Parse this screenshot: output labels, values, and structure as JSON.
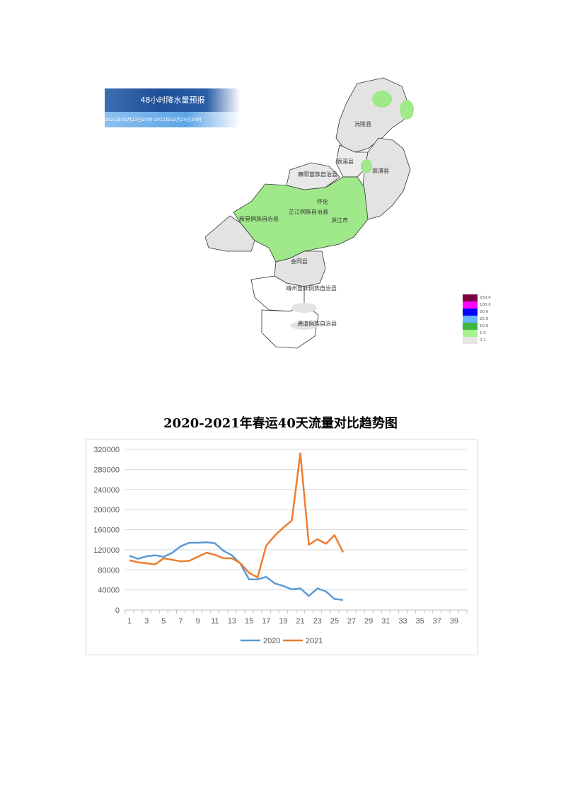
{
  "map": {
    "banner_title": "48小时降水量预报",
    "banner_subtitle": "2021年02月23日20时-2021年02月24日20时",
    "counties": [
      "沅陵县",
      "辰溪县",
      "溆浦县",
      "麻阳苗族自治县",
      "怀化",
      "芷江侗族自治县",
      "新晃侗族自治县",
      "洪江市",
      "会同县",
      "靖州苗族侗族自治县",
      "通道侗族自治县"
    ],
    "legend": [
      {
        "label": "250.0",
        "color": "#7a0040"
      },
      {
        "label": "100.0",
        "color": "#ff00ff"
      },
      {
        "label": "50.0",
        "color": "#0000ff"
      },
      {
        "label": "25.0",
        "color": "#66b3ff"
      },
      {
        "label": "10.0",
        "color": "#3cb93c"
      },
      {
        "label": "1.0",
        "color": "#a6f28f"
      },
      {
        "label": "0.1",
        "color": "#e6e6e6"
      }
    ]
  },
  "chart_data": {
    "type": "line",
    "title": "2020-2021年春运40天流量对比趋势图",
    "xlabel": "",
    "ylabel": "",
    "xlim": [
      1,
      40
    ],
    "x_tick_labels": [
      "1",
      "3",
      "5",
      "7",
      "9",
      "11",
      "13",
      "15",
      "17",
      "19",
      "21",
      "23",
      "25",
      "27",
      "29",
      "31",
      "33",
      "35",
      "37",
      "39"
    ],
    "ylim": [
      0,
      320000
    ],
    "y_ticks": [
      0,
      40000,
      80000,
      120000,
      160000,
      200000,
      240000,
      280000,
      320000
    ],
    "grid": true,
    "legend_position": "bottom",
    "x": [
      1,
      2,
      3,
      4,
      5,
      6,
      7,
      8,
      9,
      10,
      11,
      12,
      13,
      14,
      15,
      16,
      17,
      18,
      19,
      20,
      21,
      22,
      23,
      24,
      25,
      26
    ],
    "series": [
      {
        "name": "2020",
        "color": "#5b9bd5",
        "values": [
          108000,
          102000,
          107000,
          109000,
          106000,
          114000,
          127000,
          134000,
          134000,
          135000,
          133000,
          118000,
          109000,
          92000,
          61000,
          61000,
          66000,
          53000,
          48000,
          41000,
          43000,
          28000,
          43000,
          37000,
          22000,
          20000
        ]
      },
      {
        "name": "2021",
        "color": "#ed7d31",
        "values": [
          99000,
          95000,
          93000,
          91000,
          103000,
          100000,
          97000,
          98000,
          106000,
          114000,
          110000,
          103000,
          103000,
          93000,
          74000,
          65000,
          128000,
          148000,
          164000,
          178000,
          312000,
          130000,
          141000,
          132000,
          149000,
          115000
        ]
      }
    ]
  }
}
